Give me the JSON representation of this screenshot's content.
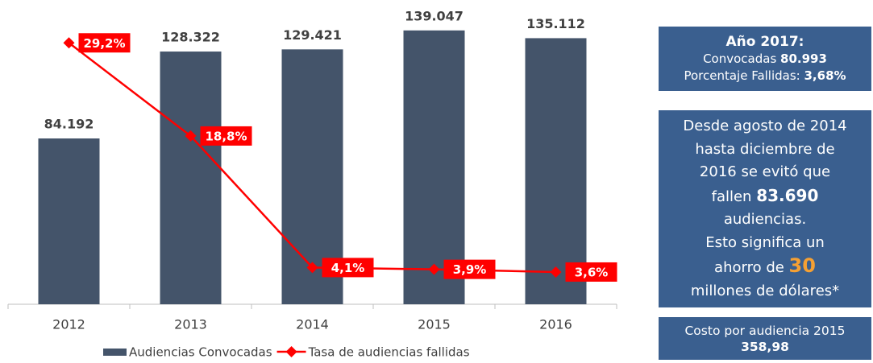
{
  "chart_data": {
    "type": "bar-line",
    "categories": [
      "2012",
      "2013",
      "2014",
      "2015",
      "2016"
    ],
    "series": [
      {
        "name": "Audiencias Convocadas",
        "type": "bar",
        "color": "#44546a",
        "values": [
          84192,
          128322,
          129421,
          139047,
          135112
        ],
        "value_labels": [
          "84.192",
          "128.322",
          "129.421",
          "139.047",
          "135.112"
        ]
      },
      {
        "name": "Tasa de audiencias fallidas",
        "type": "line",
        "axis": "y2",
        "color": "#ff0000",
        "values": [
          29.2,
          18.8,
          4.1,
          3.9,
          3.6
        ],
        "value_labels": [
          "29,2%",
          "18,8%",
          "4,1%",
          "3,9%",
          "3,6%"
        ]
      }
    ],
    "ylim": [
      0,
      150000
    ],
    "y2lim": [
      0,
      33
    ],
    "legend": "bottom"
  },
  "panels": [
    {
      "lines": [
        [
          {
            "text": "Año 2017:",
            "bold": true
          }
        ],
        [
          {
            "text": "Convocadas "
          },
          {
            "text": "80.993",
            "bold": true
          }
        ],
        [
          {
            "text": "Porcentaje Fallidas: "
          },
          {
            "text": "3,68%",
            "bold": true
          }
        ]
      ]
    },
    {
      "lines": [
        [
          {
            "text": "Desde agosto de 2014"
          }
        ],
        [
          {
            "text": "hasta diciembre de"
          }
        ],
        [
          {
            "text": "2016 se evitó que"
          }
        ],
        [
          {
            "text": "fallen "
          },
          {
            "text": "83.690",
            "bold": true
          }
        ],
        [
          {
            "text": "audiencias."
          }
        ],
        [
          {
            "text": "Esto significa un"
          }
        ],
        [
          {
            "text": "ahorro de "
          },
          {
            "text": "30",
            "bold": true,
            "color": "#f5a033"
          }
        ],
        [
          {
            "text": "millones de dólares*"
          }
        ]
      ]
    },
    {
      "lines": [
        [
          {
            "text": "Costo por audiencia 2015"
          }
        ],
        [
          {
            "text": "358,98",
            "bold": true
          }
        ]
      ]
    }
  ]
}
